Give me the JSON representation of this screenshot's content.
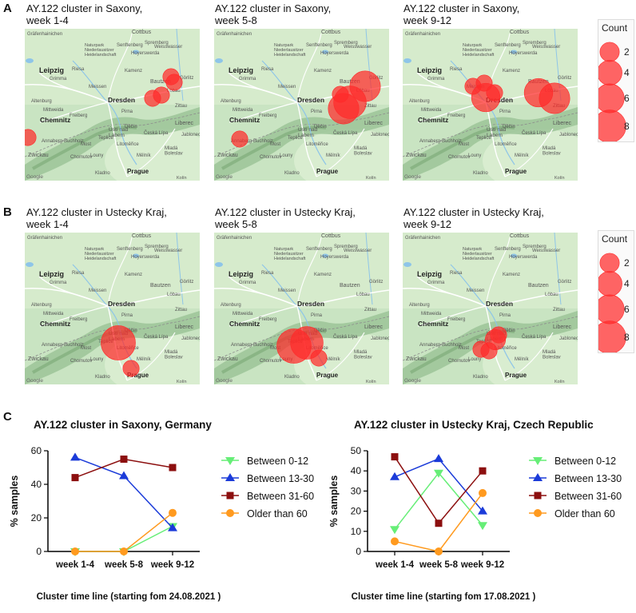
{
  "panels": {
    "a_label": "A",
    "b_label": "B",
    "c_label": "C"
  },
  "colors": {
    "bubble": "#ff2a2a",
    "green": "#66ee77",
    "blue": "#1b3bd9",
    "darkred": "#8c0f0f",
    "orange": "#ff9a1f"
  },
  "legend": {
    "title": "Count",
    "items": [
      "2",
      "4",
      "6",
      "8"
    ]
  },
  "map_labels": {
    "leipzig": "Leipzig",
    "dresden": "Dresden",
    "chemnitz": "Chemnitz",
    "prague": "Prague",
    "zwickau": "Zwickau",
    "liberec": "Liberec",
    "cottbus": "Cottbus",
    "bautzen": "Bautzen",
    "gorlitz": "Görlitz",
    "usti": "Ústí nad\nLabem",
    "meissen": "Meissen",
    "pirna": "Pirna",
    "freiberg": "Freiberg",
    "most": "Most",
    "teplice": "Teplice",
    "decin": "Děčín",
    "kamenz": "Kamenz",
    "hoyerswerda": "Hoyerswerda",
    "riesa": "Riesa",
    "grimma": "Grimma",
    "spremberg": "Spremberg",
    "chomutov": "Chomutov",
    "melnik": "Mělník",
    "kladno": "Kladno",
    "zittau": "Zittau",
    "weisswasser": "Weisswasser",
    "lobau": "Löbau",
    "ceska_lipa": "Česká Lípa",
    "mlada": "Mladá\nBoleslav",
    "altenburg": "Altenburg",
    "senftenberg": "Senftenberg",
    "litomerice": "Litoměřice",
    "louny": "Louny",
    "annaberg": "Annaberg-Buchholz",
    "mittweida": "Mittweida",
    "grafenhainichen": "Gräfenhainichen",
    "jesenik": "Jablonec",
    "naturpark": "Naturpark\nNiederlausitzer\nHeidelandschaft",
    "google": "Google",
    "kolin": "Kolín"
  },
  "maps": [
    {
      "title": "AY.122 cluster in Saxony,\nweek 1-4"
    },
    {
      "title": "AY.122 cluster in Saxony,\nweek 5-8"
    },
    {
      "title": "AY.122 cluster in Saxony,\nweek 9-12"
    },
    {
      "title": "AY.122 cluster in Ustecky Kraj,\nweek 1-4"
    },
    {
      "title": "AY.122 cluster in Ustecky Kraj,\nweek 5-8"
    },
    {
      "title": "AY.122 cluster in Ustecky Kraj,\nweek 9-12"
    }
  ],
  "chart_data": [
    {
      "type": "line",
      "title": "AY.122 cluster in Saxony, Germany",
      "xlabel": "Cluster time line (starting fom 24.08.2021 )",
      "ylabel": "% samples",
      "categories": [
        "week 1-4",
        "week 5-8",
        "week 9-12"
      ],
      "ylim": [
        0,
        60
      ],
      "yticks": [
        0,
        20,
        40,
        60
      ],
      "series": [
        {
          "name": "Between 0-12",
          "marker": "triangle-down",
          "color": "#66ee77",
          "values": [
            0,
            0,
            15
          ]
        },
        {
          "name": "Between 13-30",
          "marker": "triangle-up",
          "color": "#1b3bd9",
          "values": [
            56,
            45,
            14
          ]
        },
        {
          "name": "Between 31-60",
          "marker": "square",
          "color": "#8c0f0f",
          "values": [
            44,
            55,
            50
          ]
        },
        {
          "name": "Older than 60",
          "marker": "circle",
          "color": "#ff9a1f",
          "values": [
            0,
            0,
            23
          ]
        }
      ]
    },
    {
      "type": "line",
      "title": "AY.122 cluster in Ustecky Kraj, Czech Republic",
      "xlabel": "Cluster time line (starting fom 17.08.2021 )",
      "ylabel": "% samples",
      "categories": [
        "week 1-4",
        "week 5-8",
        "week 9-12"
      ],
      "ylim": [
        0,
        50
      ],
      "yticks": [
        0,
        10,
        20,
        30,
        40,
        50
      ],
      "series": [
        {
          "name": "Between 0-12",
          "marker": "triangle-down",
          "color": "#66ee77",
          "values": [
            11,
            39,
            13
          ]
        },
        {
          "name": "Between 13-30",
          "marker": "triangle-up",
          "color": "#1b3bd9",
          "values": [
            37,
            46,
            20
          ]
        },
        {
          "name": "Between 31-60",
          "marker": "square",
          "color": "#8c0f0f",
          "values": [
            47,
            14,
            40
          ]
        },
        {
          "name": "Older than 60",
          "marker": "circle",
          "color": "#ff9a1f",
          "values": [
            5,
            0,
            29
          ]
        }
      ]
    }
  ],
  "bubbles": [
    [
      {
        "town": "Zwickau",
        "count": 1
      },
      {
        "town": "Görlitz",
        "count": 1
      },
      {
        "town": "Görlitz",
        "count": 1
      },
      {
        "town": "Löbau",
        "count": 1
      },
      {
        "town": "Löbau",
        "count": 1
      }
    ],
    [
      {
        "town": "Zwickau",
        "count": 1
      },
      {
        "town": "Görlitz",
        "count": 6
      },
      {
        "town": "Bautzen",
        "count": 7
      },
      {
        "town": "Bautzen",
        "count": 6
      },
      {
        "town": "Löbau",
        "count": 1
      }
    ],
    [
      {
        "town": "Dresden",
        "count": 5
      },
      {
        "town": "Görlitz",
        "count": 5
      },
      {
        "town": "Zittau",
        "count": 6
      },
      {
        "town": "Meissen",
        "count": 1
      },
      {
        "town": "Meissen",
        "count": 1
      },
      {
        "town": "Bautzen",
        "count": 1
      }
    ],
    [
      {
        "town": "Ústí nad Labem",
        "count": 8
      },
      {
        "town": "Most",
        "count": 1
      }
    ],
    [
      {
        "town": "Ústí nad Labem",
        "count": 8
      },
      {
        "town": "Ústí nad Labem",
        "count": 7
      },
      {
        "town": "Děčín",
        "count": 1
      }
    ],
    [
      {
        "town": "Teplice",
        "count": 1
      },
      {
        "town": "Ústí nad Labem",
        "count": 1
      },
      {
        "town": "Děčín",
        "count": 2
      },
      {
        "town": "Most",
        "count": 1
      }
    ]
  ]
}
